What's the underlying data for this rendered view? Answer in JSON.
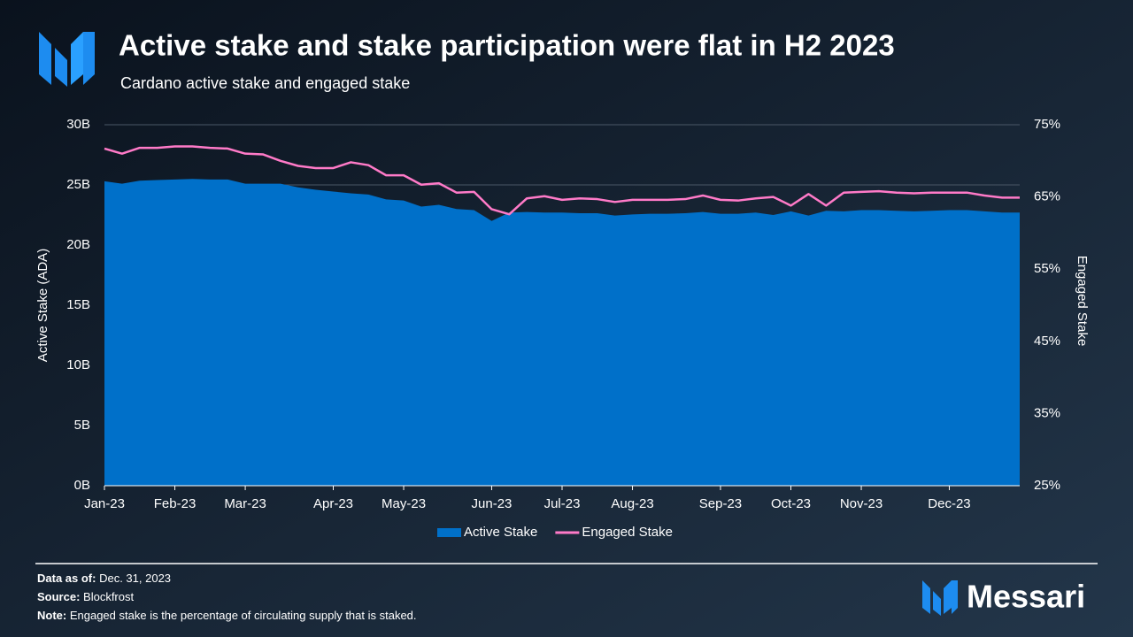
{
  "chart_data": {
    "type": "area",
    "title": "Active stake and stake participation were flat in H2 2023",
    "subtitle": "Cardano active stake and engaged stake",
    "y_label": "Active Stake (ADA)",
    "y2_label": "Engaged Stake",
    "categories": [
      "Jan-23",
      null,
      null,
      null,
      "Feb-23",
      null,
      null,
      null,
      "Mar-23",
      null,
      null,
      null,
      null,
      "Apr-23",
      null,
      null,
      null,
      "May-23",
      null,
      null,
      null,
      null,
      "Jun-23",
      null,
      null,
      null,
      "Jul-23",
      null,
      null,
      null,
      "Aug-23",
      null,
      null,
      null,
      null,
      "Sep-23",
      null,
      null,
      null,
      "Oct-23",
      null,
      null,
      null,
      "Nov-23",
      null,
      null,
      null,
      null,
      "Dec-23",
      null,
      null,
      null,
      null
    ],
    "ylim": [
      0,
      30
    ],
    "yticks": [
      {
        "value": 0,
        "label": "0B"
      },
      {
        "value": 5,
        "label": "5B"
      },
      {
        "value": 10,
        "label": "10B"
      },
      {
        "value": 15,
        "label": "15B"
      },
      {
        "value": 20,
        "label": "20B"
      },
      {
        "value": 25,
        "label": "25B"
      },
      {
        "value": 30,
        "label": "30B"
      }
    ],
    "y2lim": [
      25,
      75
    ],
    "y2ticks": [
      {
        "value": 25,
        "label": "25%"
      },
      {
        "value": 35,
        "label": "35%"
      },
      {
        "value": 45,
        "label": "45%"
      },
      {
        "value": 55,
        "label": "55%"
      },
      {
        "value": 65,
        "label": "65%"
      },
      {
        "value": 75,
        "label": "75%"
      }
    ],
    "grid": true,
    "legend": "bottom",
    "series": [
      {
        "name": "Active Stake",
        "type": "area",
        "color": "#0070c9",
        "values": [
          25.3,
          25.1,
          25.35,
          25.4,
          25.45,
          25.5,
          25.45,
          25.45,
          25.1,
          25.1,
          25.1,
          24.8,
          24.6,
          24.45,
          24.3,
          24.2,
          23.8,
          23.7,
          23.2,
          23.35,
          23.0,
          22.9,
          22.0,
          22.7,
          22.75,
          22.7,
          22.7,
          22.65,
          22.65,
          22.45,
          22.55,
          22.6,
          22.6,
          22.65,
          22.75,
          22.6,
          22.6,
          22.7,
          22.5,
          22.8,
          22.45,
          22.85,
          22.8,
          22.9,
          22.9,
          22.85,
          22.8,
          22.85,
          22.9,
          22.9,
          22.8,
          22.7,
          22.7
        ]
      },
      {
        "name": "Engaged Stake",
        "type": "line",
        "axis": "y2",
        "color": "#ff7ac8",
        "values": [
          71.7,
          71.0,
          71.8,
          71.8,
          72.0,
          72.0,
          71.8,
          71.7,
          71.0,
          70.9,
          70.0,
          69.3,
          69.0,
          69.0,
          69.8,
          69.4,
          68.0,
          68.0,
          66.7,
          66.9,
          65.6,
          65.7,
          63.3,
          62.6,
          64.8,
          65.1,
          64.6,
          64.8,
          64.7,
          64.3,
          64.6,
          64.6,
          64.6,
          64.7,
          65.2,
          64.6,
          64.5,
          64.8,
          65.0,
          63.8,
          65.4,
          63.8,
          65.6,
          65.7,
          65.8,
          65.6,
          65.5,
          65.6,
          65.6,
          65.6,
          65.2,
          64.9,
          64.9
        ]
      }
    ]
  },
  "footer": {
    "data_as_of_label": "Data as of:",
    "data_as_of": "Dec. 31, 2023",
    "source_label": "Source:",
    "source": "Blockfrost",
    "note_label": "Note:",
    "note": "Engaged stake is the percentage of circulating supply that is staked.",
    "brand": "Messari"
  }
}
